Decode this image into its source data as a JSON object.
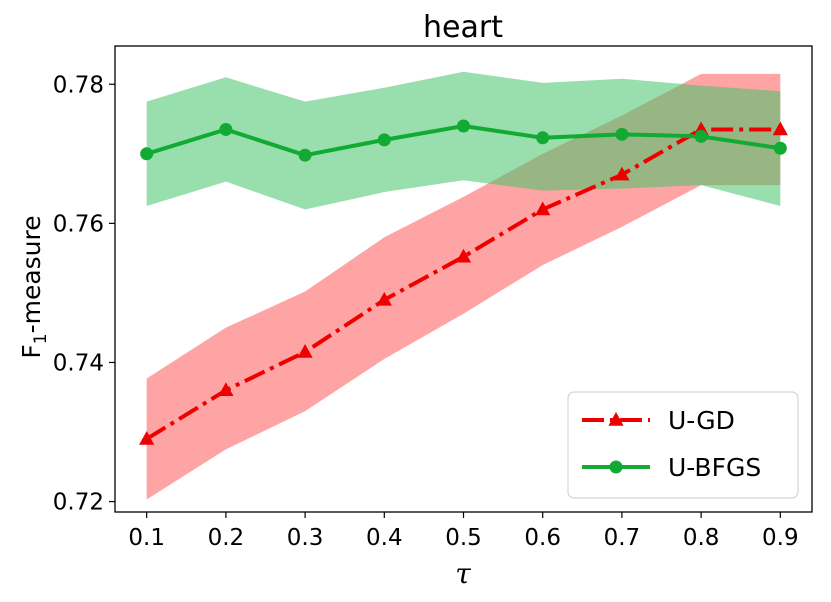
{
  "chart_data": {
    "type": "line",
    "title": "heart",
    "xlabel": "τ",
    "ylabel": "F",
    "ylabel_sub": "1",
    "ylabel_suffix": "-measure",
    "x": [
      0.1,
      0.2,
      0.3,
      0.4,
      0.5,
      0.6,
      0.7,
      0.8,
      0.9
    ],
    "x_tick_labels": [
      "0.1",
      "0.2",
      "0.3",
      "0.4",
      "0.5",
      "0.6",
      "0.7",
      "0.8",
      "0.9"
    ],
    "y_ticks": [
      0.72,
      0.74,
      0.76,
      0.78
    ],
    "y_tick_labels": [
      "0.72",
      "0.74",
      "0.76",
      "0.78"
    ],
    "xlim": [
      0.06,
      0.94
    ],
    "ylim": [
      0.7185,
      0.7855
    ],
    "grid": false,
    "legend_position": "lower-right",
    "series": [
      {
        "name": "U-GD",
        "color": "#ee0000",
        "band_color": "#ff5a5a",
        "marker": "triangle",
        "linestyle": "dashdot",
        "values": [
          0.729,
          0.736,
          0.7415,
          0.749,
          0.7552,
          0.762,
          0.767,
          0.7735,
          0.7735
        ],
        "lower": [
          0.7203,
          0.7275,
          0.733,
          0.7405,
          0.747,
          0.754,
          0.7595,
          0.7655,
          0.7655
        ],
        "upper": [
          0.7377,
          0.745,
          0.7502,
          0.758,
          0.7638,
          0.77,
          0.7755,
          0.7815,
          0.7815
        ]
      },
      {
        "name": "U-BFGS",
        "color": "#11aa33",
        "band_color": "#44c46a",
        "marker": "circle",
        "linestyle": "solid",
        "values": [
          0.77,
          0.7735,
          0.7698,
          0.772,
          0.774,
          0.7723,
          0.7728,
          0.7725,
          0.7708
        ],
        "lower": [
          0.7625,
          0.766,
          0.762,
          0.7645,
          0.7662,
          0.7647,
          0.765,
          0.7655,
          0.7625
        ],
        "upper": [
          0.7775,
          0.781,
          0.7775,
          0.7795,
          0.7818,
          0.7802,
          0.7808,
          0.7798,
          0.779
        ]
      }
    ]
  }
}
